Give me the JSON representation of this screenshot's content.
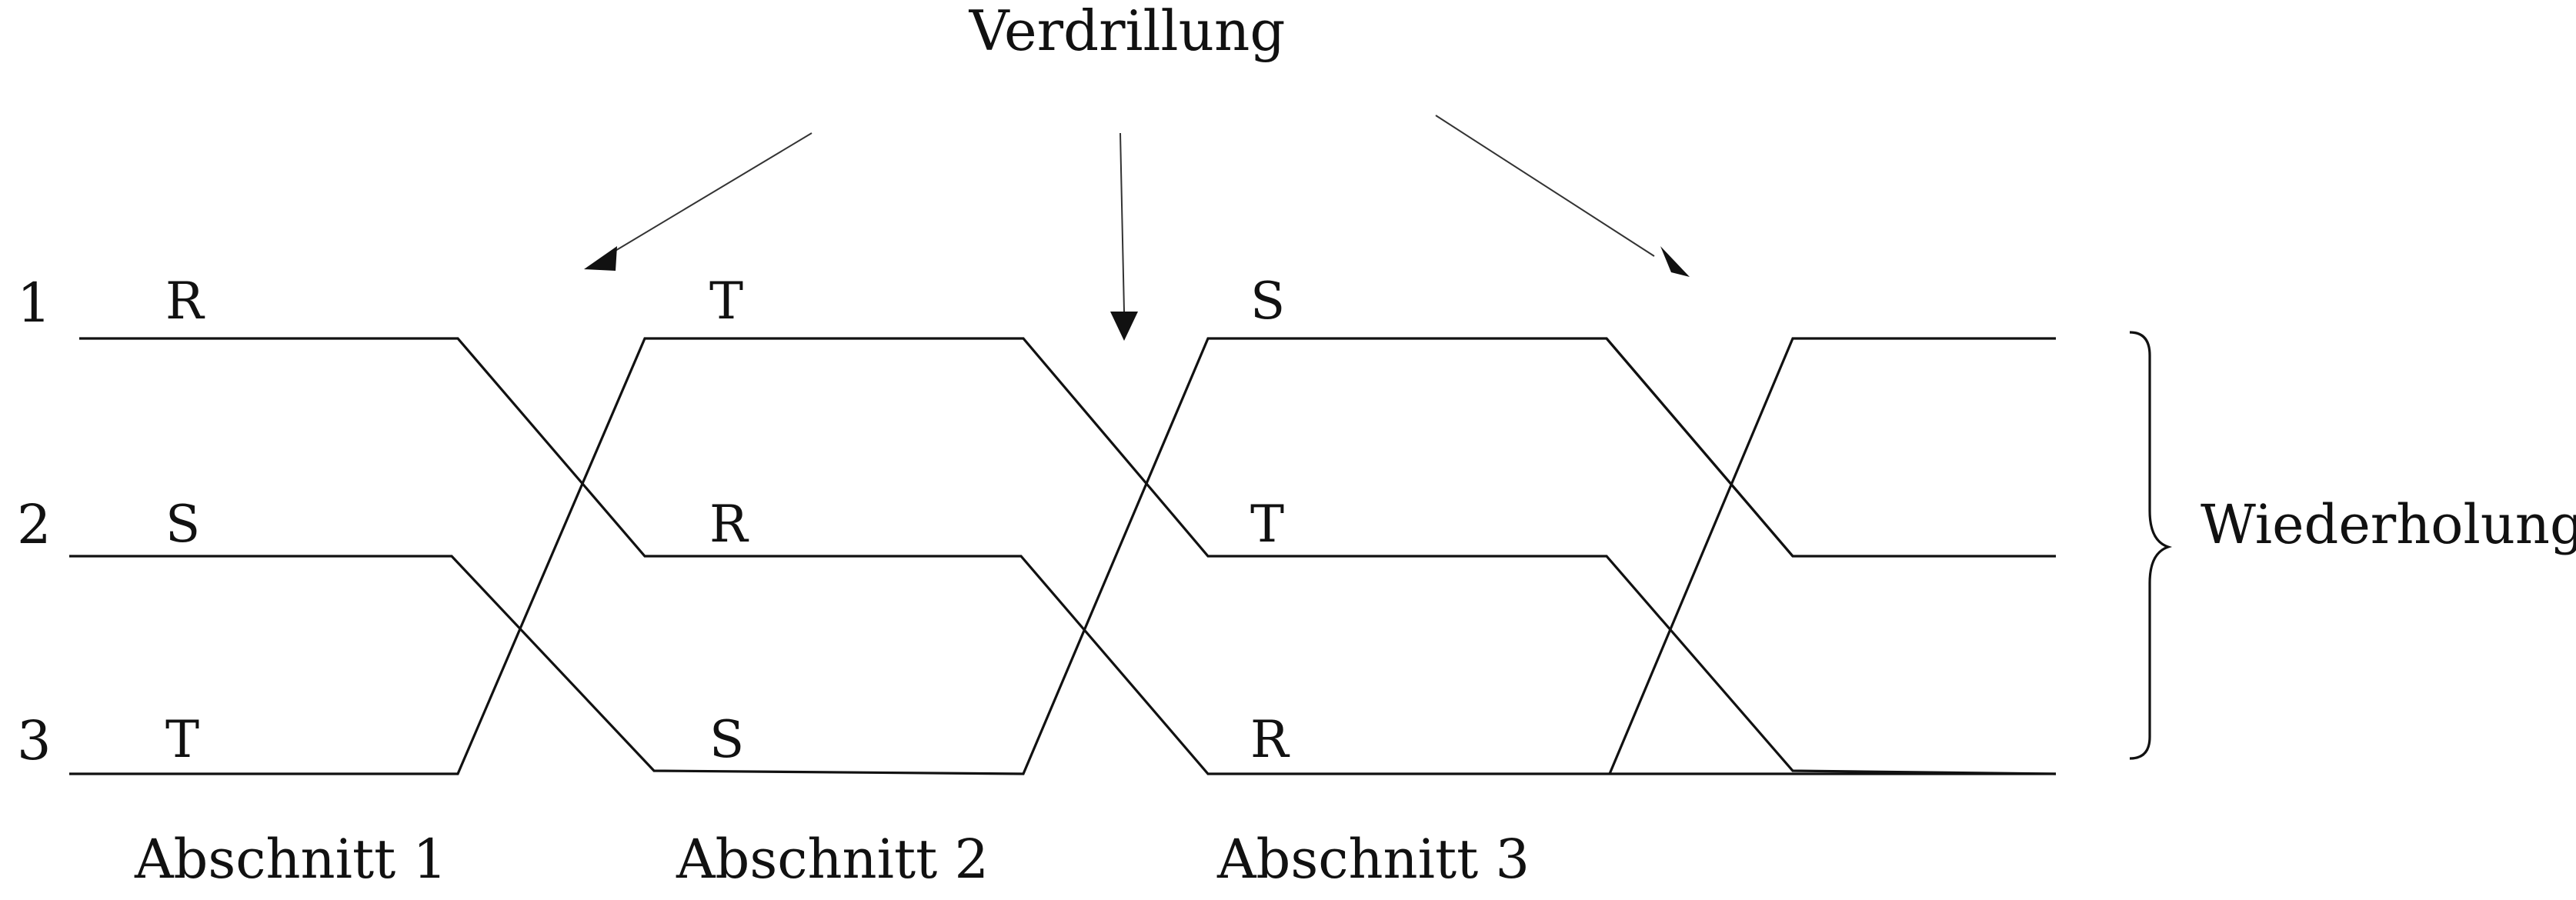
{
  "title": "Verdrillung",
  "conductors": [
    "1",
    "2",
    "3"
  ],
  "sections": [
    {
      "label": "Abschnitt 1",
      "phases": [
        "R",
        "S",
        "T"
      ]
    },
    {
      "label": "Abschnitt 2",
      "phases": [
        "T",
        "R",
        "S"
      ]
    },
    {
      "label": "Abschnitt 3",
      "phases": [
        "S",
        "T",
        "R"
      ]
    }
  ],
  "brace_label": "Wiederholung",
  "colors": {
    "lines": "#111111",
    "arrows": "#333333",
    "background": "#ffffff"
  }
}
